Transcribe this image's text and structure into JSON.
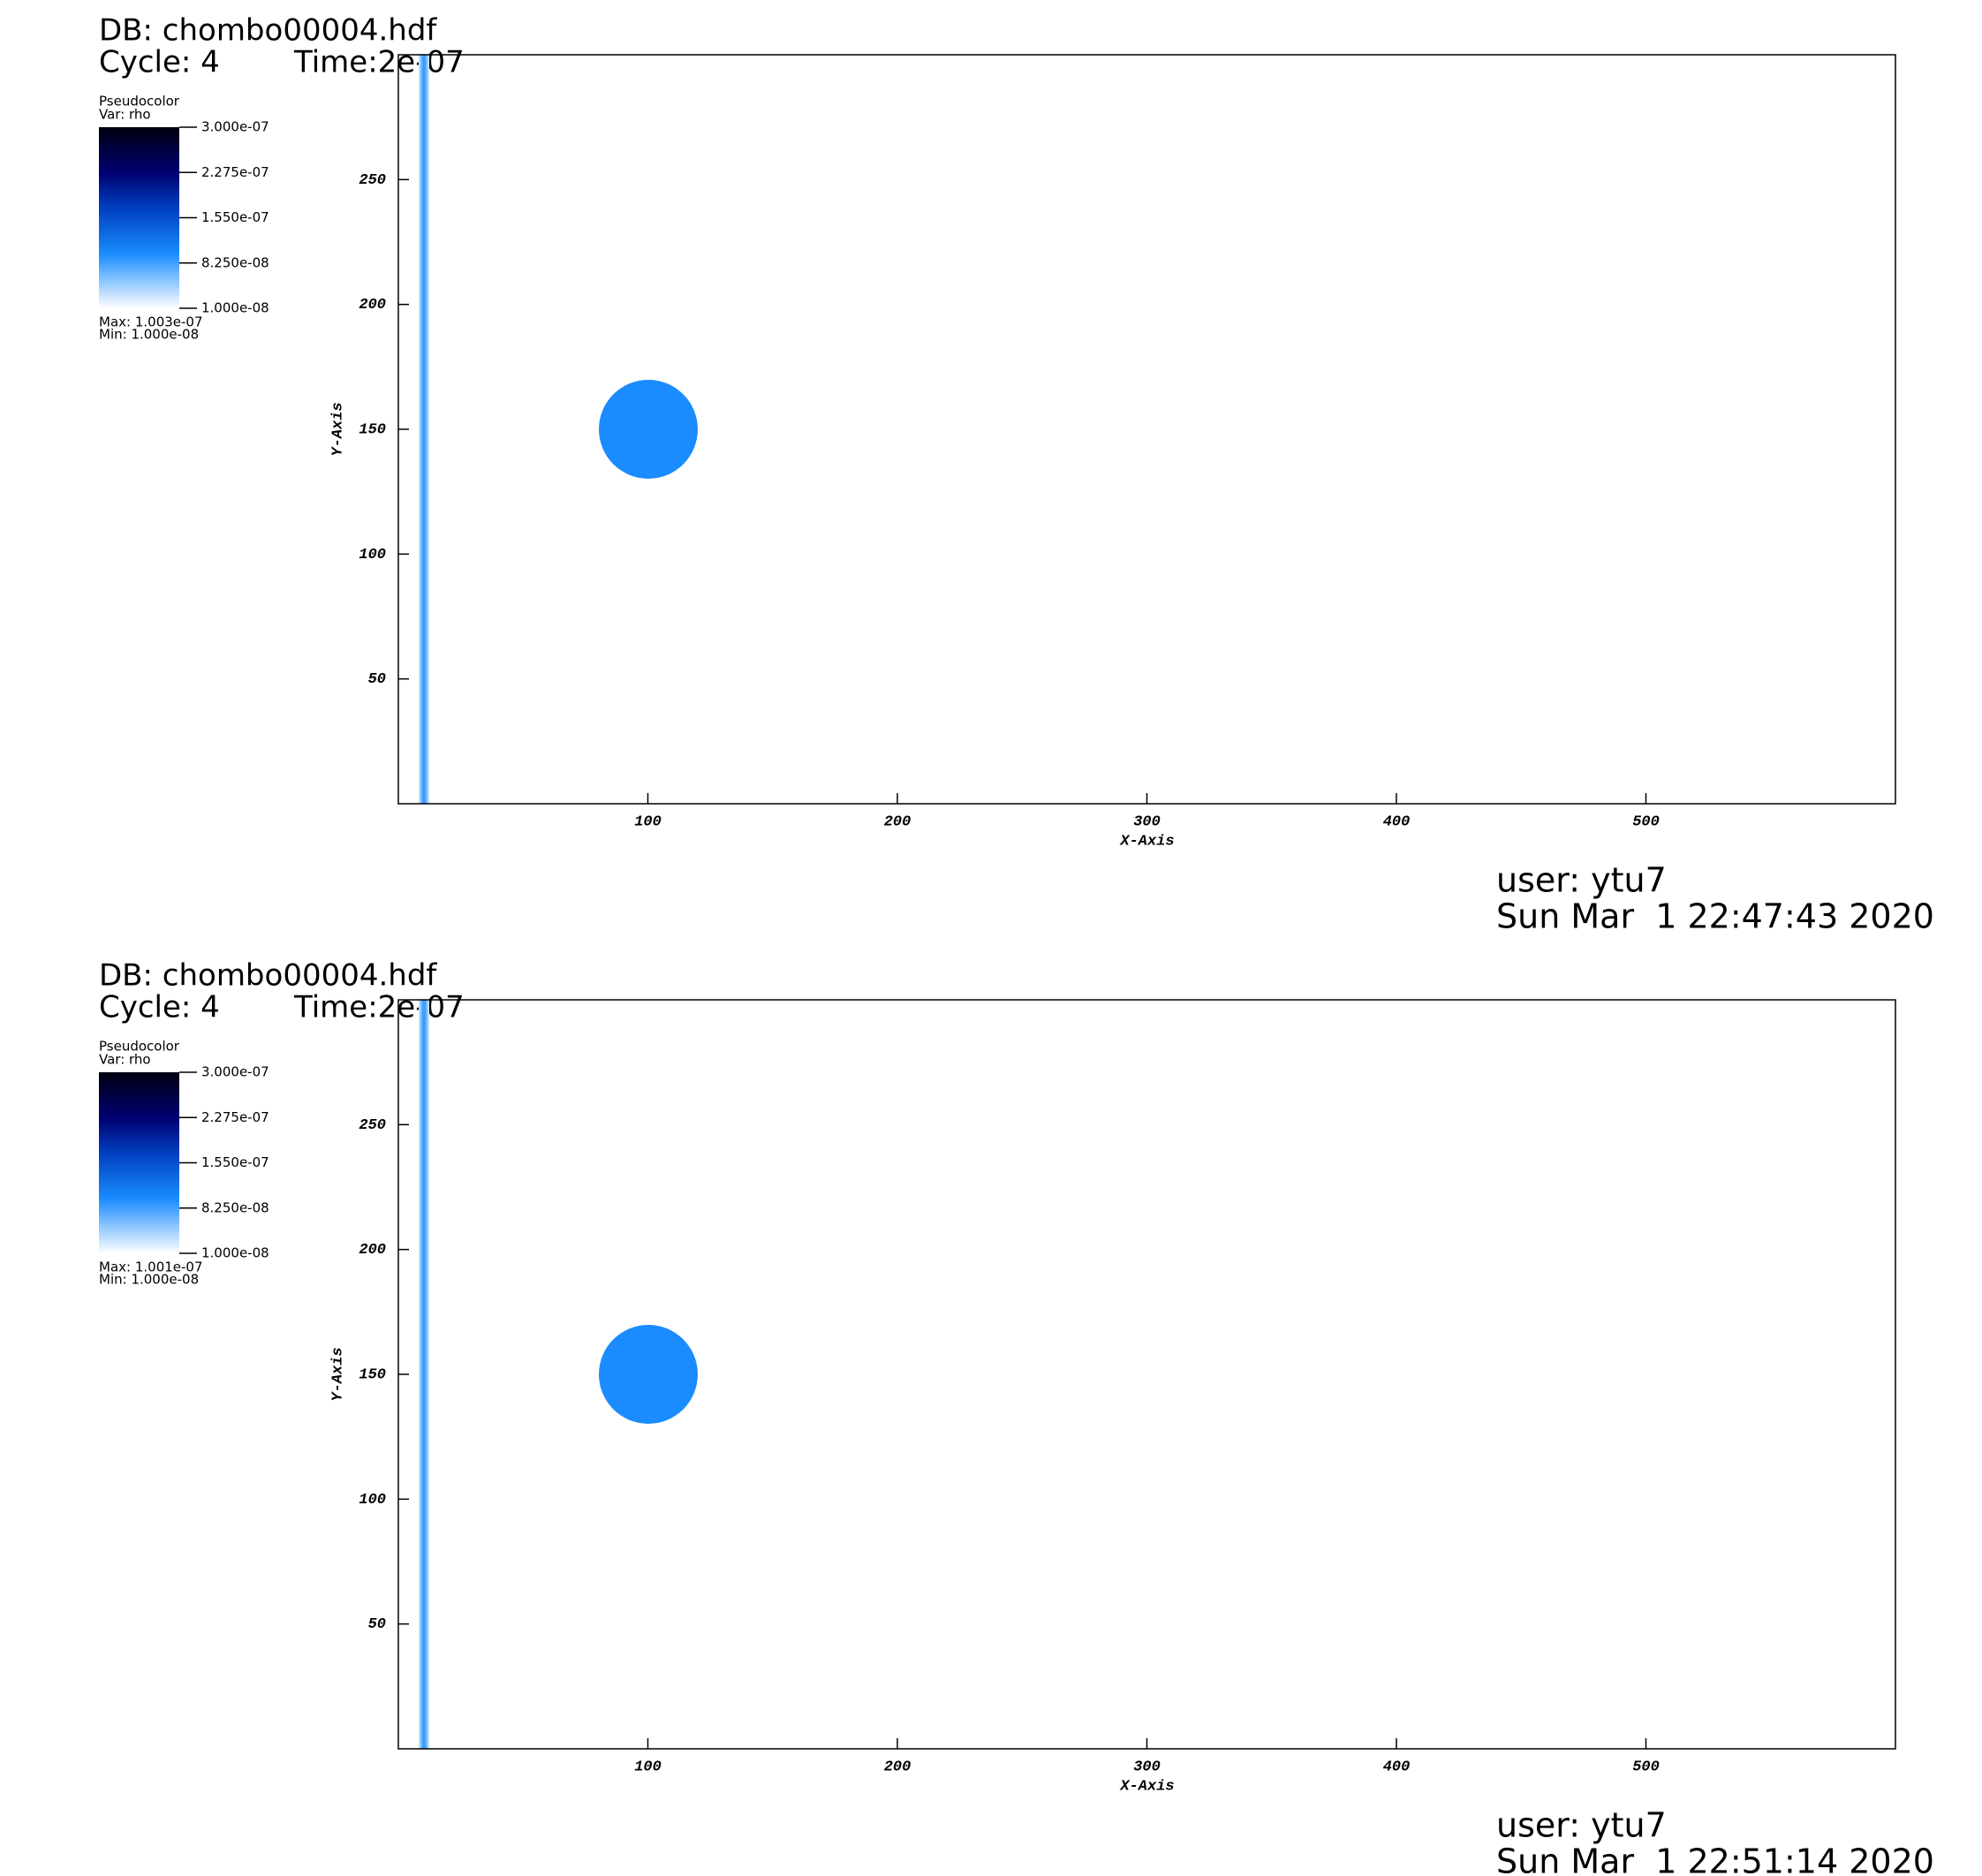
{
  "chart_data": [
    {
      "type": "pseudocolor",
      "db": "DB: chombo00004.hdf",
      "cycle": "Cycle: 4",
      "time": "Time:2e-07",
      "legend_title": "Pseudocolor",
      "variable": "Var: rho",
      "clim": [
        1e-08,
        3e-07
      ],
      "cticks": [
        {
          "value": 3e-07,
          "label": "3.000e-07"
        },
        {
          "value": 2.275e-07,
          "label": "2.275e-07"
        },
        {
          "value": 1.55e-07,
          "label": "1.550e-07"
        },
        {
          "value": 8.25e-08,
          "label": "8.250e-08"
        },
        {
          "value": 1e-08,
          "label": "1.000e-08"
        }
      ],
      "max_label": "Max:  1.003e-07",
      "min_label": "Min:  1.000e-08",
      "xlabel": "X-Axis",
      "ylabel": "Y-Axis",
      "xlim": [
        0,
        600
      ],
      "ylim": [
        0,
        300
      ],
      "xticks": [
        100,
        200,
        300,
        400,
        500
      ],
      "yticks": [
        50,
        100,
        150,
        200,
        250
      ],
      "user": "user: ytu7",
      "date": "Sun Mar  1 22:47:43 2020"
    },
    {
      "type": "pseudocolor",
      "db": "DB: chombo00004.hdf",
      "cycle": "Cycle: 4",
      "time": "Time:2e-07",
      "legend_title": "Pseudocolor",
      "variable": "Var: rho",
      "clim": [
        1e-08,
        3e-07
      ],
      "cticks": [
        {
          "value": 3e-07,
          "label": "3.000e-07"
        },
        {
          "value": 2.275e-07,
          "label": "2.275e-07"
        },
        {
          "value": 1.55e-07,
          "label": "1.550e-07"
        },
        {
          "value": 8.25e-08,
          "label": "8.250e-08"
        },
        {
          "value": 1e-08,
          "label": "1.000e-08"
        }
      ],
      "max_label": "Max:  1.001e-07",
      "min_label": "Min:  1.000e-08",
      "xlabel": "X-Axis",
      "ylabel": "Y-Axis",
      "xlim": [
        0,
        600
      ],
      "ylim": [
        0,
        300
      ],
      "xticks": [
        100,
        200,
        300,
        400,
        500
      ],
      "yticks": [
        50,
        100,
        150,
        200,
        250
      ],
      "user": "user: ytu7",
      "date": "Sun Mar  1 22:51:14 2020"
    }
  ]
}
